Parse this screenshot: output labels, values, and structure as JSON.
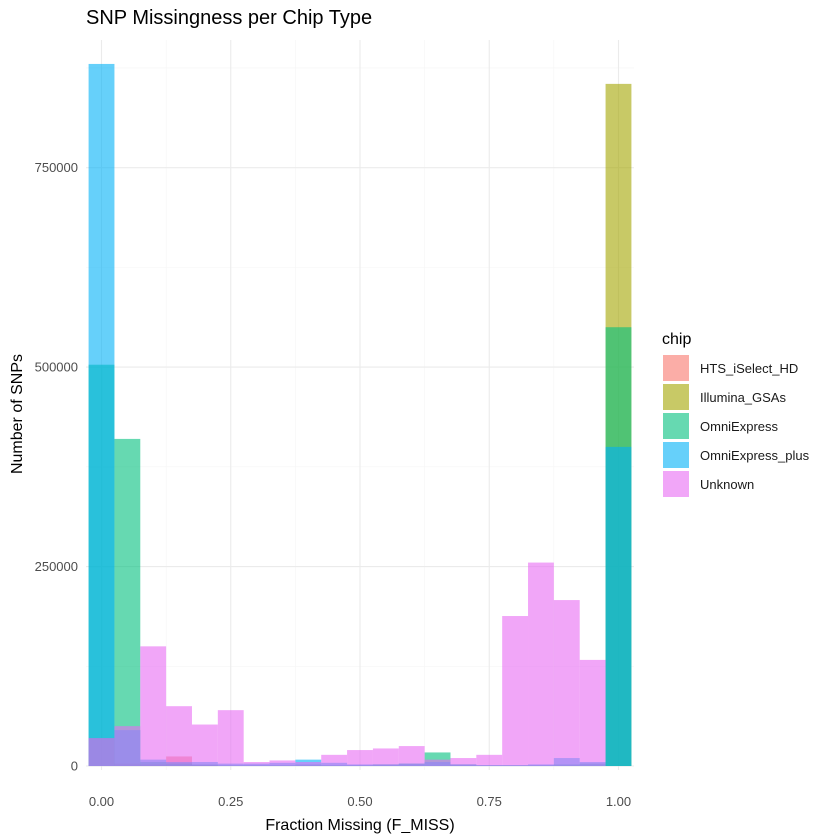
{
  "chart_data": {
    "type": "bar",
    "title": "SNP Missingness per Chip Type",
    "xlabel": "Fraction Missing (F_MISS)",
    "ylabel": "Number of SNPs",
    "xlim": [
      -0.03,
      1.03
    ],
    "ylim": [
      -5000,
      910000
    ],
    "x_ticks": [
      0.0,
      0.25,
      0.5,
      0.75,
      1.0
    ],
    "x_tick_labels": [
      "0.00",
      "0.25",
      "0.50",
      "0.75",
      "1.00"
    ],
    "y_ticks": [
      0,
      250000,
      500000,
      750000
    ],
    "y_tick_labels": [
      "0",
      "250000",
      "500000",
      "750000"
    ],
    "bin_width": 0.05,
    "bin_centers": [
      0.0,
      0.05,
      0.1,
      0.15,
      0.2,
      0.25,
      0.3,
      0.35,
      0.4,
      0.45,
      0.5,
      0.55,
      0.6,
      0.65,
      0.7,
      0.75,
      0.8,
      0.85,
      0.9,
      0.95,
      1.0
    ],
    "grid": true,
    "legend_position": "right",
    "legend_title": "chip",
    "bar_opacity": 0.6,
    "series": [
      {
        "name": "HTS_iSelect_HD",
        "color": "#F8766D",
        "values": [
          35000,
          3000,
          2000,
          12000,
          1000,
          0,
          0,
          0,
          0,
          0,
          0,
          0,
          0,
          0,
          0,
          0,
          0,
          0,
          0,
          0,
          0
        ]
      },
      {
        "name": "Illumina_GSAs",
        "color": "#A3A500",
        "values": [
          0,
          0,
          0,
          0,
          0,
          0,
          0,
          0,
          0,
          0,
          0,
          0,
          0,
          0,
          0,
          0,
          0,
          0,
          0,
          0,
          855000
        ]
      },
      {
        "name": "OmniExpress",
        "color": "#00BF7D",
        "values": [
          503000,
          410000,
          5000,
          3000,
          2000,
          1000,
          1000,
          1000,
          2000,
          1000,
          1000,
          2000,
          3000,
          17000,
          2000,
          1000,
          1000,
          1000,
          2000,
          3000,
          550000
        ]
      },
      {
        "name": "OmniExpress_plus",
        "color": "#00B0F6",
        "values": [
          880000,
          45000,
          8000,
          5000,
          5000,
          3000,
          3000,
          4000,
          8000,
          4000,
          2000,
          2000,
          3000,
          5000,
          2000,
          1000,
          1000,
          2000,
          10000,
          5000,
          400000
        ]
      },
      {
        "name": "Unknown",
        "color": "#E76BF3",
        "values": [
          35000,
          50000,
          150000,
          75000,
          52000,
          70000,
          5000,
          7000,
          5000,
          14000,
          20000,
          22000,
          25000,
          8000,
          10000,
          14000,
          188000,
          255000,
          208000,
          133000,
          0
        ]
      }
    ]
  }
}
